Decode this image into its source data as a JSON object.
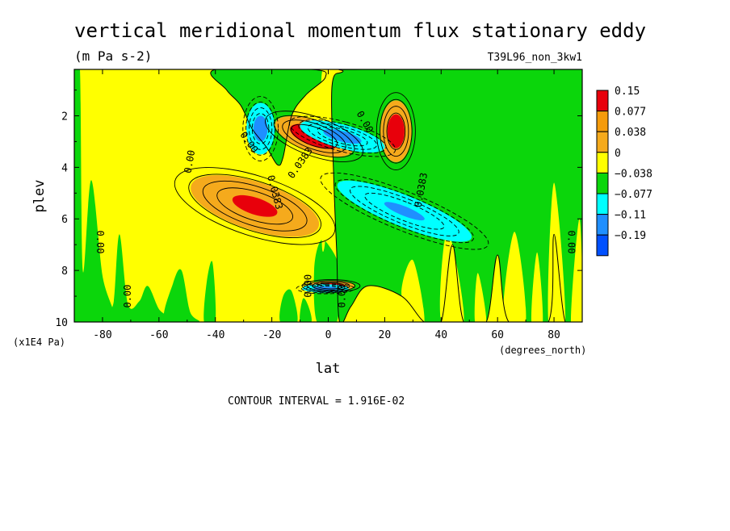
{
  "chart_data": {
    "type": "heatmap",
    "title": "vertical meridional momentum flux stationary eddy",
    "units": "(m Pa s-2)",
    "run_label": "T39L96_non_3kw1",
    "xlabel": "lat",
    "ylabel": "plev",
    "x_units": "(degrees_north)",
    "y_units": "(x1E4 Pa)",
    "xlim": [
      -90,
      90
    ],
    "ylim": [
      10,
      0.2
    ],
    "x_ticks": [
      -80,
      -60,
      -40,
      -20,
      0,
      20,
      40,
      60,
      80
    ],
    "y_ticks": [
      2,
      4,
      6,
      8,
      10
    ],
    "x_tick_labels": [
      "-80",
      "-60",
      "-40",
      "-20",
      "0",
      "20",
      "40",
      "60",
      "80"
    ],
    "y_tick_labels": [
      "2",
      "4",
      "6",
      "8",
      "10"
    ],
    "colorbar": {
      "levels": [
        "0.15",
        "0.077",
        "0.038",
        "0",
        "−0.038",
        "−0.077",
        "−0.11",
        "−0.19"
      ],
      "colors": [
        "#e8000b",
        "#f59b0b",
        "#f5aa1c",
        "#ffff00",
        "#0bd60b",
        "#00ffff",
        "#1f8fff",
        "#0050ff"
      ]
    },
    "colors": {
      "pos_strong": "#e8000b",
      "pos_mid": "#f5aa1c",
      "neutral_pos": "#ffff00",
      "neutral_neg": "#0bd60b",
      "neg_mid": "#00ffff",
      "neg_strong": "#1f8fff"
    },
    "features": [
      {
        "sign": "positive",
        "lat": -26,
        "plev": 5.5,
        "value": 0.08
      },
      {
        "sign": "positive",
        "lat": -5,
        "plev": 2.8,
        "value": 0.15
      },
      {
        "sign": "positive",
        "lat": 24,
        "plev": 2.6,
        "value": 0.12
      },
      {
        "sign": "positive",
        "lat": 1,
        "plev": 8.6,
        "value": 0.15
      },
      {
        "sign": "negative",
        "lat": -24,
        "plev": 2.5,
        "value": -0.11
      },
      {
        "sign": "negative",
        "lat": 5,
        "plev": 2.8,
        "value": -0.11
      },
      {
        "sign": "negative",
        "lat": 27,
        "plev": 5.7,
        "value": -0.09
      },
      {
        "sign": "negative",
        "lat": -1,
        "plev": 8.7,
        "value": -0.11
      }
    ],
    "contour_labels": [
      {
        "text": "0.00",
        "lat": -48,
        "plev": 3.8,
        "angle": -80
      },
      {
        "text": "0.00",
        "lat": -29,
        "plev": 3.1,
        "angle": 55
      },
      {
        "text": "0.0383",
        "lat": -20,
        "plev": 5.0,
        "angle": 75
      },
      {
        "text": "0.0383",
        "lat": -9,
        "plev": 3.9,
        "angle": -55
      },
      {
        "text": "0.00",
        "lat": 12,
        "plev": 2.3,
        "angle": 60
      },
      {
        "text": "0.0383",
        "lat": 34,
        "plev": 4.9,
        "angle": -80
      },
      {
        "text": "0.00",
        "lat": -82,
        "plev": 6.9,
        "angle": 90
      },
      {
        "text": "0.00",
        "lat": -70,
        "plev": 9.0,
        "angle": -90
      },
      {
        "text": "0.00",
        "lat": -6,
        "plev": 8.6,
        "angle": -90
      },
      {
        "text": "0.00",
        "lat": 6,
        "plev": 9.0,
        "angle": -90
      },
      {
        "text": "0.00",
        "lat": 85,
        "plev": 6.9,
        "angle": 90
      }
    ],
    "contour_interval": "CONTOUR INTERVAL = 1.916E-02",
    "grid": false,
    "legend_placement": "right colorbar"
  }
}
